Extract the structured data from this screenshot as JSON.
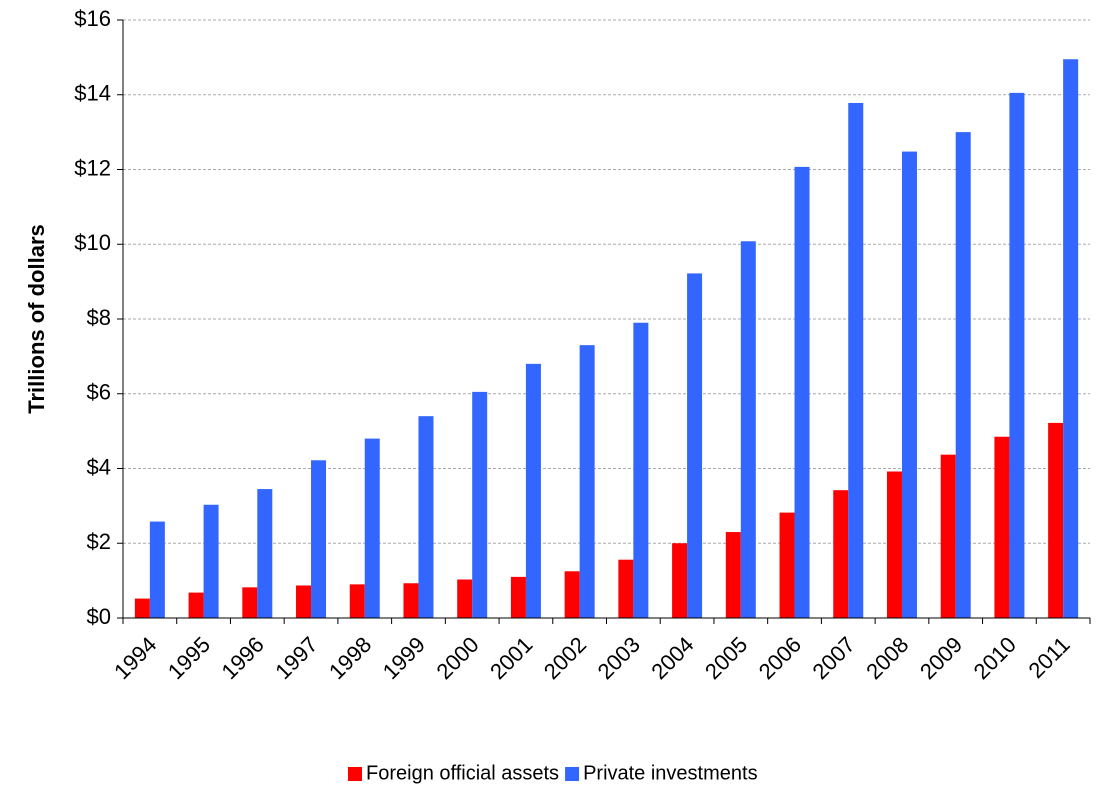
{
  "chart_data": {
    "type": "bar",
    "y_label": "Trillions of dollars",
    "categories": [
      "1994",
      "1995",
      "1996",
      "1997",
      "1998",
      "1999",
      "2000",
      "2001",
      "2002",
      "2003",
      "2004",
      "2005",
      "2006",
      "2007",
      "2008",
      "2009",
      "2010",
      "2011"
    ],
    "series": [
      {
        "name": "Foreign official assets",
        "color": "#ff0000",
        "values": [
          0.52,
          0.68,
          0.82,
          0.87,
          0.9,
          0.93,
          1.03,
          1.1,
          1.25,
          1.56,
          2.0,
          2.3,
          2.82,
          3.42,
          3.92,
          4.37,
          4.85,
          5.22
        ]
      },
      {
        "name": "Private investments",
        "color": "#3366ff",
        "values": [
          2.58,
          3.03,
          3.45,
          4.22,
          4.8,
          5.4,
          6.05,
          6.8,
          7.3,
          7.9,
          9.22,
          10.08,
          12.07,
          13.78,
          12.48,
          13.0,
          14.05,
          14.95
        ]
      }
    ],
    "ylim": [
      0,
      16
    ],
    "yticks": [
      {
        "value": 0,
        "label": "$0"
      },
      {
        "value": 2,
        "label": "$2"
      },
      {
        "value": 4,
        "label": "$4"
      },
      {
        "value": 6,
        "label": "$6"
      },
      {
        "value": 8,
        "label": "$8"
      },
      {
        "value": 10,
        "label": "$10"
      },
      {
        "value": 12,
        "label": "$12"
      },
      {
        "value": 14,
        "label": "$14"
      },
      {
        "value": 16,
        "label": "$16"
      }
    ],
    "grid": true
  }
}
